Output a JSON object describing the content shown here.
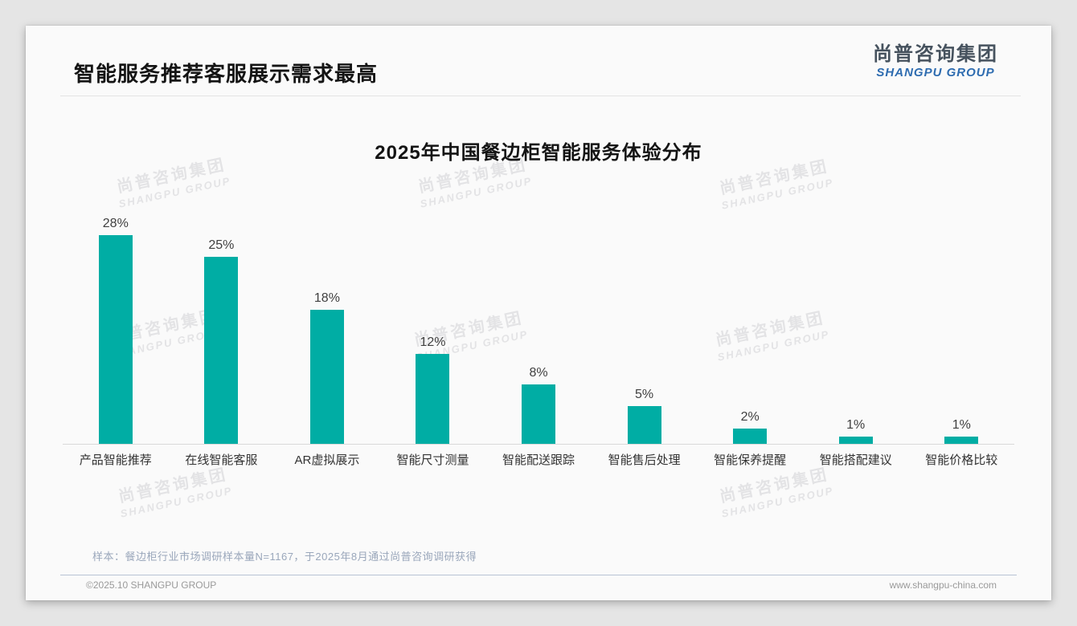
{
  "page": {
    "title": "智能服务推荐客服展示需求最高"
  },
  "logo": {
    "cn": "尚普咨询集团",
    "en": "SHANGPU GROUP"
  },
  "chart_data": {
    "type": "bar",
    "title": "2025年中国餐边柜智能服务体验分布",
    "categories": [
      "产品智能推荐",
      "在线智能客服",
      "AR虚拟展示",
      "智能尺寸测量",
      "智能配送跟踪",
      "智能售后处理",
      "智能保养提醒",
      "智能搭配建议",
      "智能价格比较"
    ],
    "values": [
      28,
      25,
      18,
      12,
      8,
      5,
      2,
      1,
      1
    ],
    "value_labels": [
      "28%",
      "25%",
      "18%",
      "12%",
      "8%",
      "5%",
      "2%",
      "1%",
      "1%"
    ],
    "unit": "%",
    "xlabel": "",
    "ylabel": "",
    "ylim": [
      0,
      30
    ],
    "grid": false,
    "legend": "none",
    "bar_color": "#00ADA4"
  },
  "footnote": "样本：餐边柜行业市场调研样本量N=1167，于2025年8月通过尚普咨询调研获得",
  "footer": {
    "copyright": "©2025.10 SHANGPU GROUP",
    "website": "www.shangpu-china.com"
  },
  "watermark": {
    "line1": "尚普咨询集团",
    "line2": "SHANGPU GROUP"
  }
}
